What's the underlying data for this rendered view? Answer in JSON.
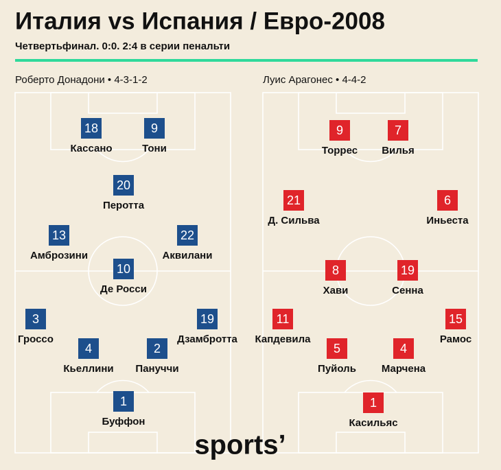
{
  "title": "Италия vs Испания / Евро-2008",
  "subtitle": "Четвертьфинал. 0:0. 2:4 в серии пенальти",
  "teams": [
    {
      "label": "Роберто Донадони • 4-3-1-2",
      "players": [
        {
          "number": 18,
          "name": "Кассано"
        },
        {
          "number": 9,
          "name": "Тони"
        },
        {
          "number": 20,
          "name": "Перотта"
        },
        {
          "number": 13,
          "name": "Амброзини"
        },
        {
          "number": 22,
          "name": "Аквилани"
        },
        {
          "number": 10,
          "name": "Де Росси"
        },
        {
          "number": 3,
          "name": "Гроссо"
        },
        {
          "number": 19,
          "name": "Дзамбротта"
        },
        {
          "number": 4,
          "name": "Кьеллини"
        },
        {
          "number": 2,
          "name": "Пануччи"
        },
        {
          "number": 1,
          "name": "Буффон"
        }
      ]
    },
    {
      "label": "Луис Арагонес • 4-4-2",
      "players": [
        {
          "number": 9,
          "name": "Торрес"
        },
        {
          "number": 7,
          "name": "Вилья"
        },
        {
          "number": 21,
          "name": "Д. Сильва"
        },
        {
          "number": 6,
          "name": "Иньеста"
        },
        {
          "number": 8,
          "name": "Хави"
        },
        {
          "number": 19,
          "name": "Сенна"
        },
        {
          "number": 11,
          "name": "Капдевила"
        },
        {
          "number": 15,
          "name": "Рамос"
        },
        {
          "number": 5,
          "name": "Пуйоль"
        },
        {
          "number": 4,
          "name": "Марчена"
        },
        {
          "number": 1,
          "name": "Касильяс"
        }
      ]
    }
  ],
  "logo": "sports’"
}
